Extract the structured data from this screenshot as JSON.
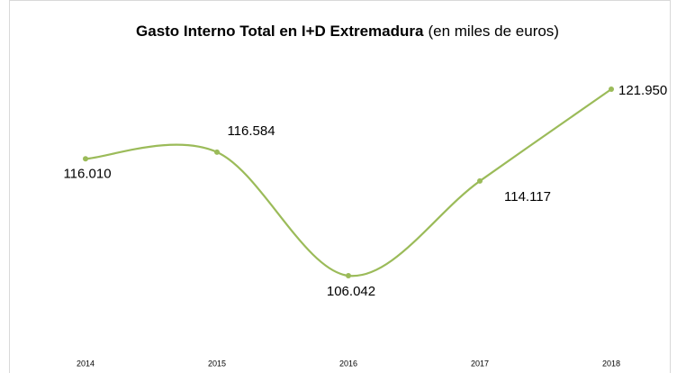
{
  "chart_data": {
    "type": "line",
    "title": "Gasto Interno Total en I+D Extremadura",
    "subtitle": "(en miles de euros)",
    "categories": [
      "2014",
      "2015",
      "2016",
      "2017",
      "2018"
    ],
    "series": [
      {
        "color": "#9bbb59",
        "values": [
          116010,
          116584,
          106042,
          114117,
          121950
        ],
        "value_labels": [
          "116.010",
          "116.584",
          "106.042",
          "114.117",
          "121.950"
        ]
      }
    ]
  }
}
